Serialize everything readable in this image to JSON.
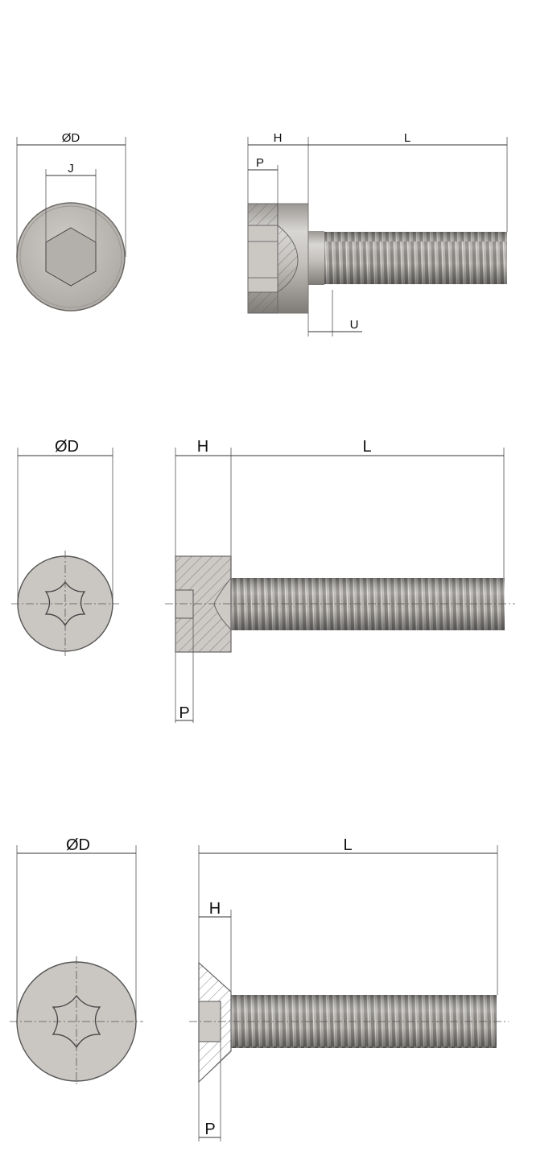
{
  "diagrams": [
    {
      "id": "socket-cap",
      "head_label": "ØD",
      "drive_label": "J",
      "height_label": "H",
      "length_label": "L",
      "depth_label": "P",
      "undercut_label": "U"
    },
    {
      "id": "torx-cap",
      "head_label": "ØD",
      "height_label": "H",
      "length_label": "L",
      "depth_label": "P"
    },
    {
      "id": "torx-countersunk",
      "head_label": "ØD",
      "height_label": "H",
      "length_label": "L",
      "depth_label": "P"
    }
  ],
  "colors": {
    "metal": "#c6c3bf",
    "metal_dark": "#8d8a86",
    "line": "#333333"
  }
}
